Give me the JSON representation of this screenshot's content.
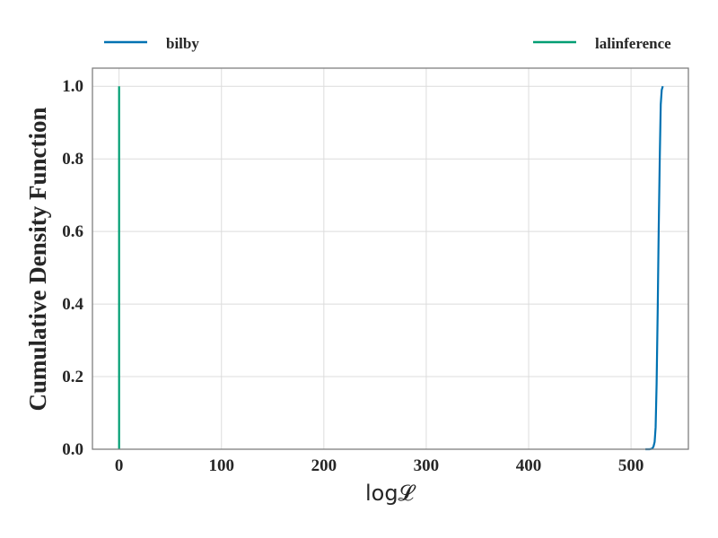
{
  "chart_data": {
    "type": "line",
    "title": "",
    "xlabel": "log𝓛",
    "ylabel": "Cumulative Density Function",
    "xlim": [
      -26,
      556
    ],
    "ylim": [
      0,
      1.05
    ],
    "xticks": [
      0,
      100,
      200,
      300,
      400,
      500
    ],
    "yticks": [
      0.0,
      0.2,
      0.4,
      0.6,
      0.8,
      1.0
    ],
    "xtick_labels": [
      "0",
      "100",
      "200",
      "300",
      "400",
      "500"
    ],
    "ytick_labels": [
      "0.0",
      "0.2",
      "0.4",
      "0.6",
      "0.8",
      "1.0"
    ],
    "grid": true,
    "legend_placement": "above",
    "series": [
      {
        "name": "bilby",
        "color": "#0072b2",
        "x": [
          514,
          518,
          520,
          521,
          522,
          523,
          524,
          525,
          526,
          527,
          528,
          529,
          530,
          531
        ],
        "y": [
          0.0,
          0.0,
          0.001,
          0.003,
          0.008,
          0.02,
          0.06,
          0.18,
          0.38,
          0.6,
          0.8,
          0.95,
          0.99,
          1.0
        ]
      },
      {
        "name": "lalinference",
        "color": "#009e73",
        "x": [
          0,
          0,
          0
        ],
        "y": [
          0.0,
          0.5,
          1.0
        ]
      }
    ]
  }
}
